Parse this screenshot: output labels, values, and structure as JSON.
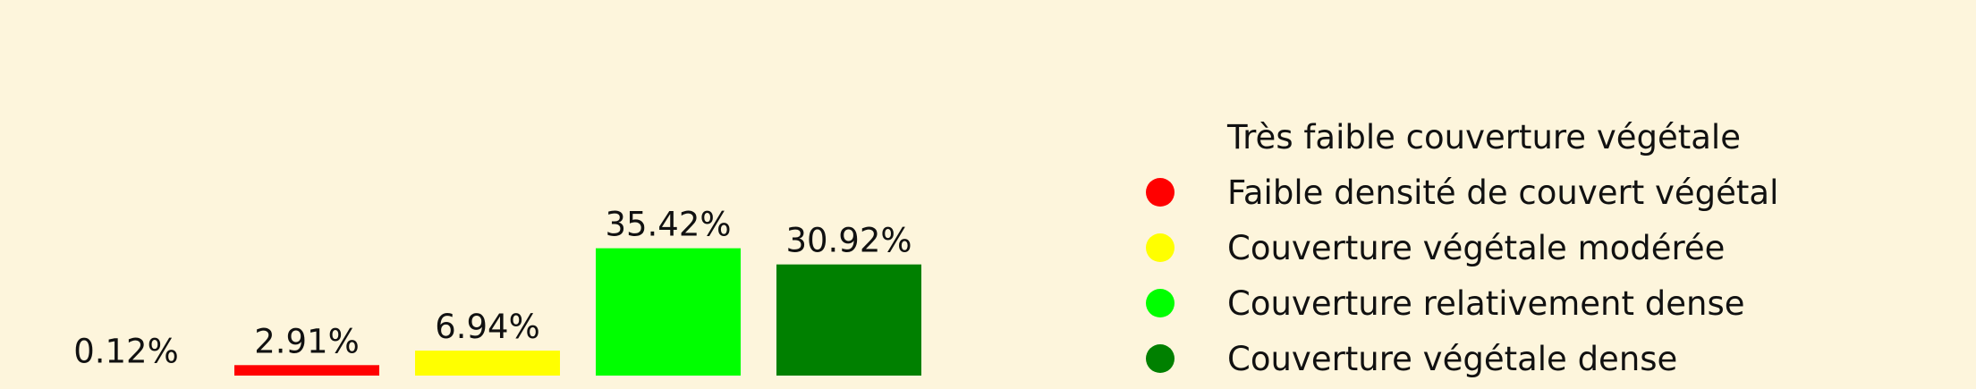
{
  "chart_data": {
    "type": "bar",
    "categories": [
      "Très faible couverture végétale",
      "Faible densité de couvert végétal",
      "Couverture végétale modérée",
      "Couverture relativement dense",
      "Couverture végétale dense"
    ],
    "values": [
      0.12,
      2.91,
      6.94,
      35.42,
      30.92
    ],
    "value_labels": [
      "0.12%",
      "2.91%",
      "6.94%",
      "35.42%",
      "30.92%"
    ],
    "colors": [
      "#fdf5dc",
      "#ff0000",
      "#ffff00",
      "#00ff00",
      "#008000"
    ],
    "ylim": [
      0,
      50
    ],
    "grid": false,
    "legend_position": "right"
  }
}
